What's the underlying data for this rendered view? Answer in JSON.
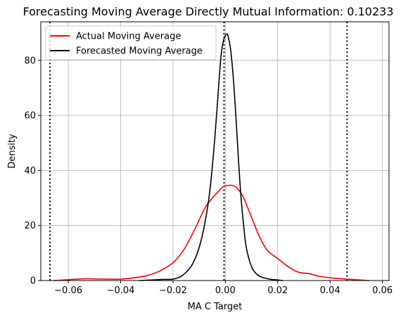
{
  "chart_data": {
    "type": "line",
    "title": "Forecasting Moving Average Directly Mutual Information: 0.10233",
    "xlabel": "MA C Target",
    "ylabel": "Density",
    "xlim": [
      -0.0705,
      0.0625
    ],
    "ylim": [
      0,
      94
    ],
    "grid": true,
    "legend_position": "top-left",
    "x_ticks": [
      -0.06,
      -0.04,
      -0.02,
      0.0,
      0.02,
      0.04,
      0.06
    ],
    "x_tick_labels": [
      "−0.06",
      "−0.04",
      "−0.02",
      "0.00",
      "0.02",
      "0.04",
      "0.06"
    ],
    "y_ticks": [
      0,
      20,
      40,
      60,
      80
    ],
    "y_tick_labels": [
      "0",
      "20",
      "40",
      "60",
      "80"
    ],
    "vertical_lines": [
      -0.067,
      -0.0005,
      0.0465
    ],
    "series": [
      {
        "name": "Actual Moving Average",
        "color": "#ff0000",
        "x": [
          -0.0655,
          -0.06,
          -0.055,
          -0.05,
          -0.045,
          -0.04,
          -0.035,
          -0.03,
          -0.025,
          -0.02,
          -0.016,
          -0.012,
          -0.008,
          -0.005,
          -0.003,
          -0.001,
          0.001,
          0.003,
          0.005,
          0.007,
          0.01,
          0.013,
          0.016,
          0.02,
          0.024,
          0.028,
          0.032,
          0.036,
          0.04,
          0.045,
          0.05,
          0.055
        ],
        "y": [
          0,
          0.3,
          0.6,
          0.6,
          0.5,
          0.5,
          1.0,
          1.8,
          3.5,
          6.5,
          11,
          18,
          26,
          30,
          32,
          34,
          34.5,
          34.5,
          33,
          30,
          23,
          16,
          11,
          8,
          5,
          3,
          2.5,
          1.5,
          1,
          0.6,
          0.3,
          0
        ]
      },
      {
        "name": "Forecasted Moving Average",
        "color": "#000000",
        "x": [
          -0.033,
          -0.028,
          -0.024,
          -0.02,
          -0.017,
          -0.014,
          -0.012,
          -0.01,
          -0.008,
          -0.006,
          -0.004,
          -0.002,
          -0.001,
          0.0,
          0.0005,
          0.001,
          0.002,
          0.003,
          0.004,
          0.005,
          0.006,
          0.007,
          0.008,
          0.01,
          0.012,
          0.014,
          0.017,
          0.02,
          0.022
        ],
        "y": [
          0,
          0.2,
          0.4,
          0.5,
          1.5,
          4,
          7,
          12,
          20,
          32,
          52,
          78,
          86,
          89,
          89.5,
          89,
          84,
          74,
          60,
          44,
          30,
          20,
          12,
          5,
          2.3,
          1.2,
          0.5,
          0.2,
          0
        ]
      }
    ]
  }
}
